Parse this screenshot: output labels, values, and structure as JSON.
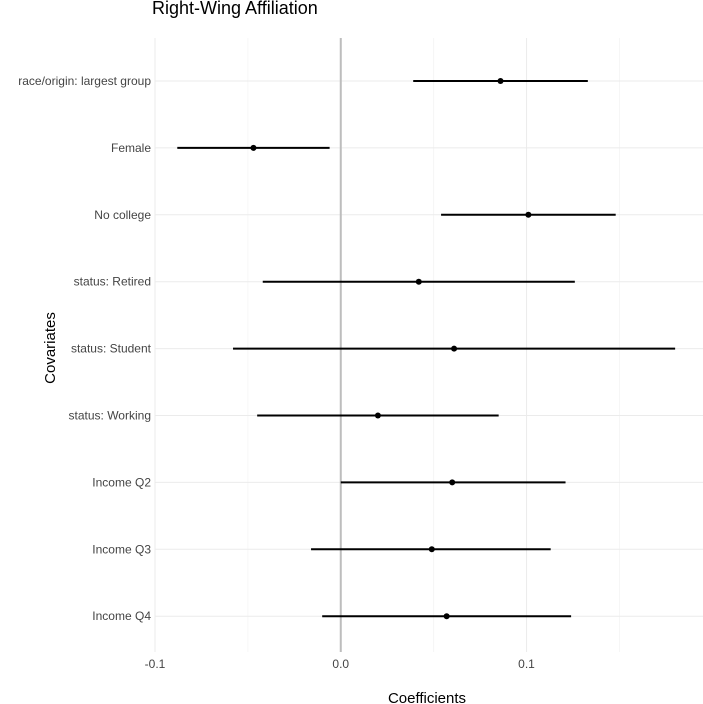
{
  "chart_data": {
    "type": "scatter",
    "title": "Right-Wing Affiliation",
    "xlabel": "Coefficients",
    "ylabel": "Covariates",
    "xlim": [
      -0.1,
      0.195
    ],
    "xticks": [
      -0.1,
      0.0,
      0.1
    ],
    "xtick_labels": [
      "-0.1",
      "0.0",
      "0.1"
    ],
    "grid": true,
    "reference_line": 0,
    "categories": [
      "race/origin: largest group",
      "Female",
      "No college",
      "status: Retired",
      "status: Student",
      "status: Working",
      "Income Q2",
      "Income Q3",
      "Income Q4"
    ],
    "series": [
      {
        "estimates": [
          0.086,
          -0.047,
          0.101,
          0.042,
          0.061,
          0.02,
          0.06,
          0.049,
          0.057
        ],
        "ci_low": [
          0.039,
          -0.088,
          0.054,
          -0.042,
          -0.058,
          -0.045,
          0.0,
          -0.016,
          -0.01
        ],
        "ci_high": [
          0.133,
          -0.006,
          0.148,
          0.126,
          0.18,
          0.085,
          0.121,
          0.113,
          0.124
        ]
      }
    ]
  }
}
